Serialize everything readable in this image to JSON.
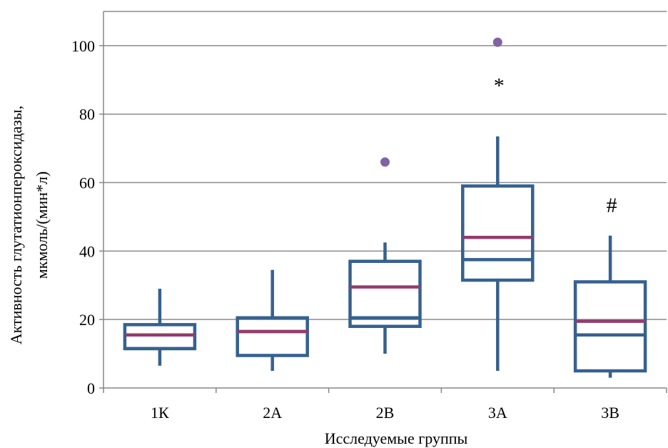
{
  "chart_data": {
    "type": "box",
    "xlabel": "Исследуемые группы",
    "ylabel_lines": [
      "Активность глутатионпероксидазы,",
      "мкмоль/(мин*л)"
    ],
    "categories": [
      "1К",
      "2А",
      "2В",
      "3А",
      "3В"
    ],
    "ylim": [
      0,
      110
    ],
    "yticks": [
      "0",
      "20",
      "40",
      "60",
      "80",
      "100"
    ],
    "grid": true,
    "boxes": [
      {
        "category": "1К",
        "min": 6.5,
        "q1": 11.5,
        "median": 11.5,
        "mean": 15.5,
        "q3": 18.5,
        "max": 29
      },
      {
        "category": "2А",
        "min": 5,
        "q1": 9.5,
        "median": 16.5,
        "mean": 16.5,
        "q3": 20.5,
        "max": 34.5
      },
      {
        "category": "2В",
        "min": 10,
        "q1": 18,
        "median": 20.5,
        "mean": 29.5,
        "q3": 37,
        "max": 42.5
      },
      {
        "category": "3А",
        "min": 5,
        "q1": 31.5,
        "median": 37.5,
        "mean": 44,
        "q3": 59,
        "max": 73.5
      },
      {
        "category": "3В",
        "min": 3,
        "q1": 5,
        "median": 15.5,
        "mean": 19.5,
        "q3": 31,
        "max": 44.5
      }
    ],
    "outliers": [
      {
        "category": "2В",
        "value": 66
      },
      {
        "category": "3А",
        "value": 101
      }
    ],
    "annotations": [
      {
        "category": "3А",
        "text": "*",
        "value": 88
      },
      {
        "category": "3В",
        "text": "#",
        "value": 53
      }
    ],
    "colors": {
      "box": "#35618f",
      "mean": "#943c6c",
      "outlier": "#8064a2",
      "grid": "#8c8c8c",
      "axis": "#868686"
    }
  }
}
